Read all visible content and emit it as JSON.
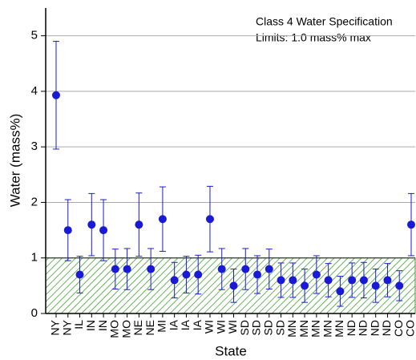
{
  "chart_data": {
    "type": "scatter",
    "annotations": [
      "Class 4 Water Specification",
      "Limits: 1.0 mass% max"
    ],
    "x_label": "State",
    "y_label": "Water (mass%)",
    "categories": [
      "NY",
      "NY",
      "IL",
      "IN",
      "IN",
      "MO",
      "MO",
      "NE",
      "NE",
      "MI",
      "IA",
      "IA",
      "IA",
      "WI",
      "WI",
      "WI",
      "SD",
      "SD",
      "SD",
      "SD",
      "MN",
      "MN",
      "MN",
      "MN",
      "MN",
      "ND",
      "ND",
      "ND",
      "ND",
      "CO",
      "CO"
    ],
    "series": [
      {
        "color": "#1a1ad6",
        "values": [
          3.93,
          1.5,
          0.7,
          1.6,
          1.5,
          0.8,
          0.8,
          1.6,
          0.8,
          1.7,
          0.6,
          0.7,
          0.7,
          1.7,
          0.8,
          0.5,
          0.8,
          0.7,
          0.8,
          0.6,
          0.6,
          0.5,
          0.7,
          0.6,
          0.4,
          0.6,
          0.6,
          0.5,
          0.6,
          0.5,
          1.6
        ],
        "errors": [
          0.97,
          0.55,
          0.33,
          0.56,
          0.55,
          0.36,
          0.37,
          0.57,
          0.37,
          0.58,
          0.32,
          0.33,
          0.35,
          0.59,
          0.37,
          0.3,
          0.37,
          0.34,
          0.36,
          0.31,
          0.31,
          0.3,
          0.34,
          0.3,
          0.27,
          0.31,
          0.32,
          0.3,
          0.3,
          0.27,
          0.56
        ]
      }
    ],
    "limit": 1,
    "limit_color": "#3a9a2a",
    "ylim": [
      0,
      5.5
    ],
    "yticks": [
      0,
      1,
      2,
      3,
      4,
      5
    ],
    "grid": true
  }
}
